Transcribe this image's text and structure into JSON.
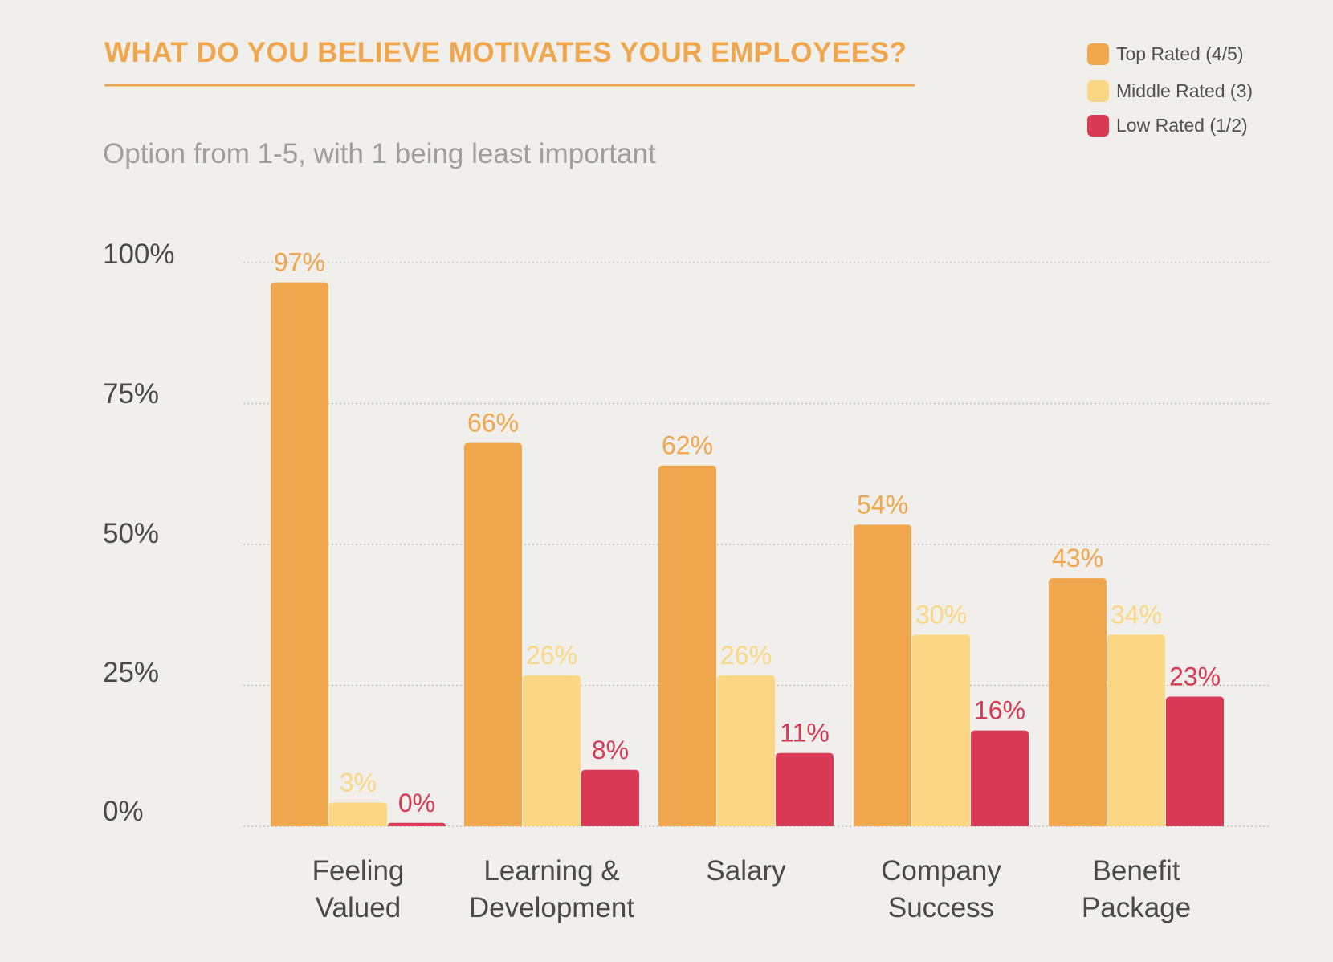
{
  "chart_data": {
    "type": "bar",
    "title": "WHAT DO YOU BELIEVE MOTIVATES YOUR EMPLOYEES?",
    "subtitle": "Option from 1-5, with 1 being least important",
    "xlabel": "",
    "ylabel": "",
    "ylim": [
      0,
      100
    ],
    "y_ticks": [
      {
        "value": 0,
        "label": "0%"
      },
      {
        "value": 25,
        "label": "25%"
      },
      {
        "value": 50,
        "label": "50%"
      },
      {
        "value": 75,
        "label": "75%"
      },
      {
        "value": 100,
        "label": "100%"
      }
    ],
    "categories": [
      [
        "Feeling",
        "Valued"
      ],
      [
        "Learning &",
        "Development"
      ],
      [
        "Salary"
      ],
      [
        "Company",
        "Success"
      ],
      [
        "Benefit",
        "Package"
      ]
    ],
    "series": [
      {
        "name": "Top Rated (4/5)",
        "color": "#f0a64c",
        "values": [
          97,
          66,
          62,
          54,
          43
        ],
        "labels": [
          "97%",
          "66%",
          "62%",
          "54%",
          "43%"
        ],
        "shown_values": [
          96.5,
          68,
          64,
          53.5,
          44
        ]
      },
      {
        "name": "Middle Rated (3)",
        "color": "#fbd785",
        "values": [
          3,
          26,
          26,
          30,
          34
        ],
        "labels": [
          "3%",
          "26%",
          "26%",
          "30%",
          "34%"
        ],
        "shown_values": [
          4.2,
          26.8,
          26.8,
          34,
          34
        ]
      },
      {
        "name": "Low Rated (1/2)",
        "color": "#d93954",
        "values": [
          0,
          8,
          11,
          16,
          23
        ],
        "labels": [
          "0%",
          "8%",
          "11%",
          "16%",
          "23%"
        ],
        "shown_values": [
          0.6,
          10,
          13,
          17,
          23
        ]
      }
    ],
    "grid": true,
    "legend_position": "top-right",
    "title_color": "#f0a64c",
    "rule_color": "#f0a64c"
  }
}
